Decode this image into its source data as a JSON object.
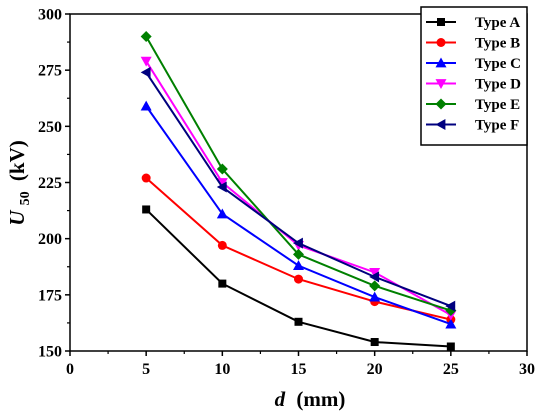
{
  "chart_data": {
    "type": "line",
    "x": [
      5,
      10,
      15,
      20,
      25
    ],
    "xlim": [
      0,
      30
    ],
    "ylim": [
      150,
      300
    ],
    "xticks": [
      "0",
      "5",
      "10",
      "15",
      "20",
      "25",
      "30"
    ],
    "yticks": [
      "150",
      "175",
      "200",
      "225",
      "250",
      "275",
      "300"
    ],
    "xlabel": {
      "symbol": "d",
      "unit": "(mm)"
    },
    "ylabel": {
      "symbol": "U",
      "subscript": "50",
      "unit": "(kV)"
    },
    "grid": false,
    "legend_position": "top-right",
    "series": [
      {
        "name": "Type A",
        "color": "#000000",
        "marker": "square",
        "values": [
          213,
          180,
          163,
          154,
          152
        ]
      },
      {
        "name": "Type B",
        "color": "#ff0000",
        "marker": "circle",
        "values": [
          227,
          197,
          182,
          172,
          164
        ]
      },
      {
        "name": "Type C",
        "color": "#0000ff",
        "marker": "triangle-up",
        "values": [
          259,
          211,
          188,
          174,
          162
        ]
      },
      {
        "name": "Type D",
        "color": "#ff00ff",
        "marker": "triangle-down",
        "values": [
          279,
          225,
          197,
          185,
          166
        ]
      },
      {
        "name": "Type E",
        "color": "#008000",
        "marker": "diamond",
        "values": [
          290,
          231,
          193,
          179,
          168
        ]
      },
      {
        "name": "Type F",
        "color": "#00007f",
        "marker": "triangle-left",
        "values": [
          274,
          223,
          198,
          183,
          170
        ]
      }
    ]
  }
}
